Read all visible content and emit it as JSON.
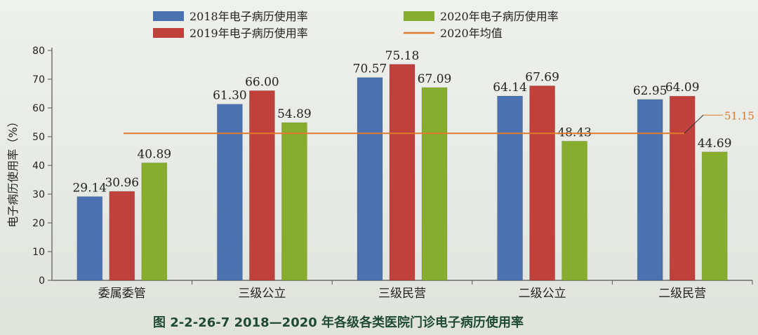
{
  "chart_data": {
    "type": "bar",
    "categories": [
      "委属委管",
      "三级公立",
      "三级民营",
      "二级公立",
      "二级民营"
    ],
    "series": [
      {
        "name": "2018年电子病历使用率",
        "color": "#4a72b0",
        "values": [
          29.14,
          61.3,
          70.57,
          64.14,
          62.95
        ],
        "labels": [
          "29.14",
          "61.30",
          "70.57",
          "64.14",
          "62.95"
        ]
      },
      {
        "name": "2019年电子病历使用率",
        "color": "#c0413c",
        "values": [
          30.96,
          66.0,
          75.18,
          67.69,
          64.09
        ],
        "labels": [
          "30.96",
          "66.00",
          "75.18",
          "67.69",
          "64.09"
        ]
      },
      {
        "name": "2020年电子病历使用率",
        "color": "#86ad2e",
        "values": [
          40.89,
          54.89,
          67.09,
          48.43,
          44.69
        ],
        "labels": [
          "40.89",
          "54.89",
          "67.09",
          "48.43",
          "44.69"
        ]
      }
    ],
    "average": {
      "name": "2020年均值",
      "value": 51.15,
      "label": "51.15",
      "color": "#e07b2c"
    },
    "ylabel": "电子病历使用率（%）",
    "ylim": [
      0,
      80
    ],
    "yticks": [
      "0",
      "10",
      "20",
      "30",
      "40",
      "50",
      "60",
      "70",
      "80"
    ],
    "legend_position": "top",
    "caption": "图 2-2-26-7   2018—2020 年各级各类医院门诊电子病历使用率"
  }
}
